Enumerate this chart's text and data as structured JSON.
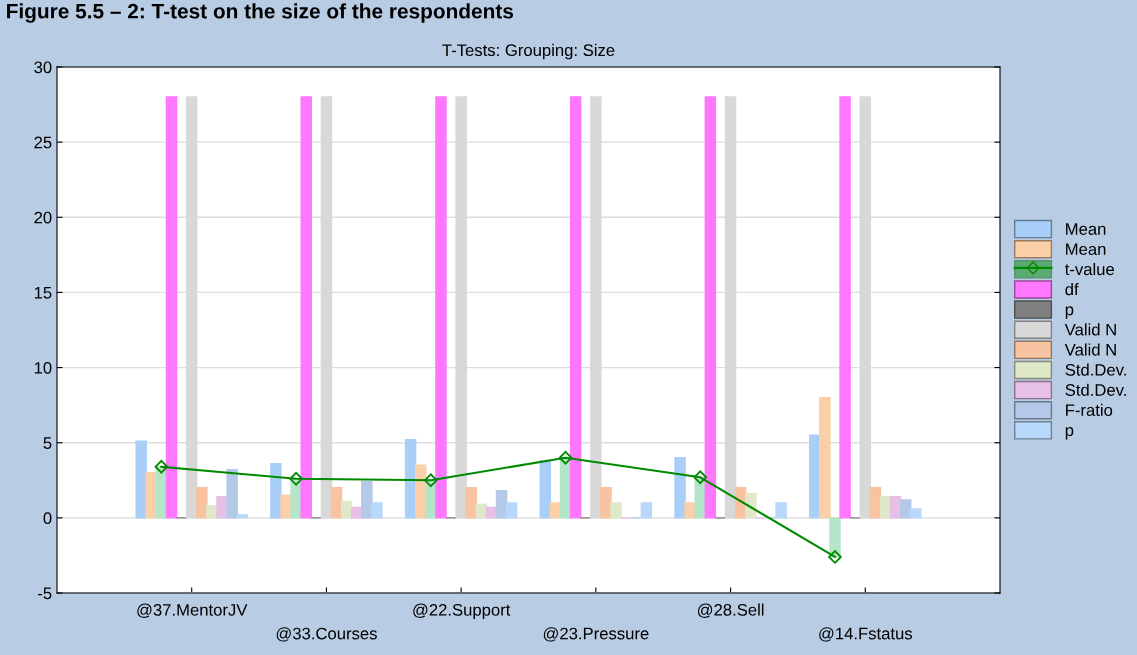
{
  "chart_data": {
    "type": "bar",
    "title": "T-Tests: Grouping: Size",
    "annotations": [
      "Figure 5.5 – 2: T-test on the size of the respondents"
    ],
    "categories": [
      "@37.MentorJV",
      "@33.Courses",
      "@22.Support",
      "@23.Pressure",
      "@28.Sell",
      "@14.Fstatus"
    ],
    "series": [
      {
        "name": "Mean",
        "color": "#a9cff8",
        "values": [
          5.1,
          3.6,
          5.2,
          3.8,
          4.0,
          5.5
        ]
      },
      {
        "name": "Mean",
        "color": "#fbcfa8",
        "values": [
          3.0,
          1.5,
          3.5,
          1.0,
          1.0,
          8.0
        ]
      },
      {
        "name": "t-value",
        "type": "line",
        "marker": "diamond",
        "color": "#008a00",
        "values": [
          3.4,
          2.6,
          2.5,
          4.0,
          2.7,
          -2.6
        ]
      },
      {
        "type": "bar",
        "color": "#b5e5c8",
        "values": [
          3.4,
          2.6,
          2.5,
          4.0,
          2.7,
          -2.6
        ]
      },
      {
        "name": "df",
        "color": "#ff77ff",
        "values": [
          28,
          28,
          28,
          28,
          28,
          28
        ]
      },
      {
        "name": "p",
        "color": "#808080",
        "values": [
          0,
          0,
          0,
          0,
          0,
          0
        ]
      },
      {
        "name": "Valid N",
        "color": "#d8d8d8",
        "values": [
          28,
          28,
          28,
          28,
          28,
          28
        ]
      },
      {
        "name": "Valid N",
        "color": "#f7c3a0",
        "values": [
          2.0,
          2.0,
          2.0,
          2.0,
          2.0,
          2.0
        ]
      },
      {
        "name": "Std.Dev.",
        "color": "#dfe8c8",
        "values": [
          0.8,
          1.1,
          0.9,
          1.0,
          1.6,
          1.4
        ]
      },
      {
        "name": "Std.Dev.",
        "color": "#e6c0e6",
        "values": [
          1.4,
          0.7,
          0.7,
          0,
          0,
          1.4
        ]
      },
      {
        "name": "F-ratio",
        "color": "#b4c8e8",
        "values": [
          3.2,
          2.4,
          1.8,
          0,
          0,
          1.2
        ]
      },
      {
        "name": "p",
        "color": "#b8d8fb",
        "values": [
          0.2,
          1.0,
          1.0,
          1.0,
          1.0,
          0.6
        ]
      }
    ],
    "ylim": [
      -5,
      30
    ],
    "yticks": [
      -5,
      0,
      5,
      10,
      15,
      20,
      25,
      30
    ],
    "grid": "y",
    "legend": "right"
  }
}
